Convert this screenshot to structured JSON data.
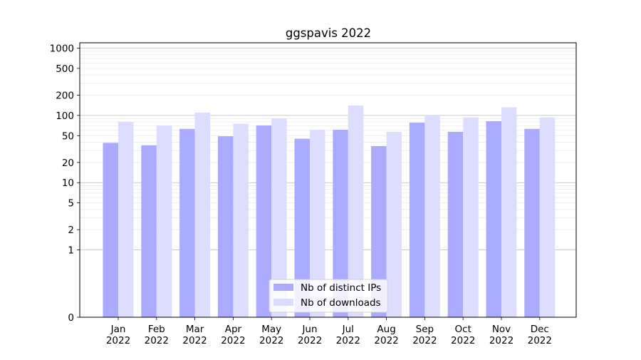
{
  "chart_data": {
    "type": "bar",
    "title": "ggspavis 2022",
    "xlabel": "",
    "ylabel": "",
    "yscale": "symlog",
    "ylim": [
      0,
      1200
    ],
    "y_ticks": [
      0,
      1,
      2,
      5,
      10,
      20,
      50,
      100,
      200,
      500,
      1000
    ],
    "y_tick_labels": [
      "0",
      "1",
      "2",
      "5",
      "10",
      "20",
      "50",
      "100",
      "200",
      "500",
      "1000"
    ],
    "grid": true,
    "legend_position": "lower center",
    "categories": [
      {
        "month": "Jan",
        "year": "2022"
      },
      {
        "month": "Feb",
        "year": "2022"
      },
      {
        "month": "Mar",
        "year": "2022"
      },
      {
        "month": "Apr",
        "year": "2022"
      },
      {
        "month": "May",
        "year": "2022"
      },
      {
        "month": "Jun",
        "year": "2022"
      },
      {
        "month": "Jul",
        "year": "2022"
      },
      {
        "month": "Aug",
        "year": "2022"
      },
      {
        "month": "Sep",
        "year": "2022"
      },
      {
        "month": "Oct",
        "year": "2022"
      },
      {
        "month": "Nov",
        "year": "2022"
      },
      {
        "month": "Dec",
        "year": "2022"
      }
    ],
    "series": [
      {
        "name": "Nb of distinct IPs",
        "color": "#aaaaff",
        "values": [
          39,
          36,
          63,
          49,
          71,
          45,
          61,
          35,
          78,
          57,
          82,
          63
        ]
      },
      {
        "name": "Nb of downloads",
        "color": "#ddddff",
        "values": [
          80,
          71,
          110,
          75,
          90,
          61,
          140,
          57,
          100,
          93,
          132,
          93
        ]
      }
    ]
  }
}
